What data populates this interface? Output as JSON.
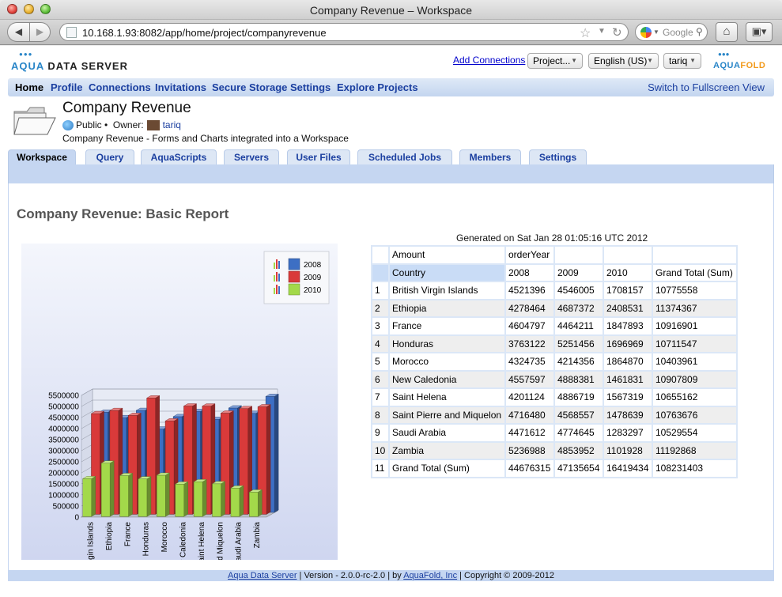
{
  "window": {
    "title": "Company Revenue – Workspace"
  },
  "browser": {
    "url": "10.168.1.93:8082/app/home/project/companyrevenue",
    "search_placeholder": "Google"
  },
  "header": {
    "logo_aqua": "AQUA",
    "logo_rest": "DATA SERVER",
    "add_connections": "Add Connections",
    "project_select": "Project...",
    "language_select": "English (US)",
    "user_select": "tariq",
    "brand_right_a": "AQUA",
    "brand_right_b": "FOLD"
  },
  "nav": {
    "items": [
      "Home",
      "Profile",
      "Connections",
      "Invitations",
      "Secure Storage",
      "Settings",
      "Explore Projects"
    ],
    "fullscreen": "Switch to Fullscreen View"
  },
  "project": {
    "title": "Company Revenue",
    "visibility": "Public •",
    "owner_label": "Owner:",
    "owner": "tariq",
    "description": "Company Revenue - Forms and Charts integrated into a Workspace"
  },
  "tabs": [
    "Workspace",
    "Query",
    "AquaScripts",
    "Servers",
    "User Files",
    "Scheduled Jobs",
    "Members",
    "Settings"
  ],
  "report": {
    "title": "Company Revenue: Basic Report",
    "generated": "Generated on Sat Jan 28 01:05:16 UTC 2012"
  },
  "table": {
    "header1": [
      "Amount",
      "orderYear"
    ],
    "header2": [
      "Country",
      "2008",
      "2009",
      "2010",
      "Grand Total (Sum)"
    ],
    "rows": [
      [
        "1",
        "British Virgin Islands",
        "4521396",
        "4546005",
        "1708157",
        "10775558"
      ],
      [
        "2",
        "Ethiopia",
        "4278464",
        "4687372",
        "2408531",
        "11374367"
      ],
      [
        "3",
        "France",
        "4604797",
        "4464211",
        "1847893",
        "10916901"
      ],
      [
        "4",
        "Honduras",
        "3763122",
        "5251456",
        "1696969",
        "10711547"
      ],
      [
        "5",
        "Morocco",
        "4324735",
        "4214356",
        "1864870",
        "10403961"
      ],
      [
        "6",
        "New Caledonia",
        "4557597",
        "4888381",
        "1461831",
        "10907809"
      ],
      [
        "7",
        "Saint Helena",
        "4201124",
        "4886719",
        "1567319",
        "10655162"
      ],
      [
        "8",
        "Saint Pierre and Miquelon",
        "4716480",
        "4568557",
        "1478639",
        "10763676"
      ],
      [
        "9",
        "Saudi Arabia",
        "4471612",
        "4774645",
        "1283297",
        "10529554"
      ],
      [
        "10",
        "Zambia",
        "5236988",
        "4853952",
        "1101928",
        "11192868"
      ],
      [
        "11",
        "Grand Total (Sum)",
        "44676315",
        "47135654",
        "16419434",
        "108231403"
      ]
    ]
  },
  "chart_data": {
    "type": "bar",
    "categories": [
      "British Virgin Islands",
      "Ethiopia",
      "France",
      "Honduras",
      "Morocco",
      "New Caledonia",
      "Saint Helena",
      "Saint Pierre and Miquelon",
      "Saudi Arabia",
      "Zambia"
    ],
    "series": [
      {
        "name": "2008",
        "color": "#3d6fc4",
        "values": [
          4521396,
          4278464,
          4604797,
          3763122,
          4324735,
          4557597,
          4201124,
          4716480,
          4471612,
          5236988
        ]
      },
      {
        "name": "2009",
        "color": "#d93a3a",
        "values": [
          4546005,
          4687372,
          4464211,
          5251456,
          4214356,
          4888381,
          4886719,
          4568557,
          4774645,
          4853952
        ]
      },
      {
        "name": "2010",
        "color": "#a3d94a",
        "values": [
          1708157,
          2408531,
          1847893,
          1696969,
          1864870,
          1461831,
          1567319,
          1478639,
          1283297,
          1101928
        ]
      }
    ],
    "yticks": [
      "0",
      "500000",
      "1000000",
      "1500000",
      "2000000",
      "2500000",
      "3000000",
      "3500000",
      "4000000",
      "4500000",
      "5000000",
      "5500000"
    ],
    "ylim": [
      0,
      5500000
    ],
    "legend": "top-right",
    "grid": true
  },
  "footer": {
    "link1": "Aqua Data Server",
    "mid": " | Version - 2.0.0-rc-2.0 | by ",
    "link2": "AquaFold, Inc",
    "end": " | Copyright © 2009-2012"
  }
}
